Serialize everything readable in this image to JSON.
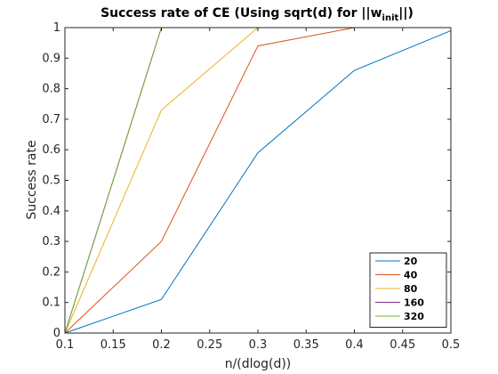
{
  "chart_data": {
    "type": "line",
    "title_main": "Success rate of CE (Using sqrt(d) for ||w",
    "title_sub": "init",
    "title_end": "||)",
    "xlabel": "n/(dlog(d))",
    "ylabel": "Success rate",
    "x": [
      0.1,
      0.2,
      0.3,
      0.4,
      0.5
    ],
    "xlim": [
      0.1,
      0.5
    ],
    "ylim": [
      0,
      1
    ],
    "xticks": [
      "0.1",
      "0.15",
      "0.2",
      "0.25",
      "0.3",
      "0.35",
      "0.4",
      "0.45",
      "0.5"
    ],
    "yticks": [
      "0",
      "0.1",
      "0.2",
      "0.3",
      "0.4",
      "0.5",
      "0.6",
      "0.7",
      "0.8",
      "0.9",
      "1"
    ],
    "legend_position": "bottom-right",
    "grid": false,
    "series": [
      {
        "name": "20",
        "color": "#0072BD",
        "values": [
          0,
          0.11,
          0.59,
          0.86,
          0.99
        ]
      },
      {
        "name": "40",
        "color": "#D95319",
        "values": [
          0,
          0.3,
          0.94,
          1.0,
          1.0
        ]
      },
      {
        "name": "80",
        "color": "#EDB120",
        "values": [
          0,
          0.73,
          1.0,
          1.0,
          1.0
        ]
      },
      {
        "name": "160",
        "color": "#7E2F8E",
        "values": [
          0,
          1.0,
          1.0,
          1.0,
          1.0
        ]
      },
      {
        "name": "320",
        "color": "#77AC30",
        "values": [
          0,
          1.0,
          1.0,
          1.0,
          1.0
        ]
      }
    ]
  }
}
